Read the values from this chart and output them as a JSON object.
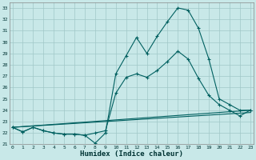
{
  "xlabel": "Humidex (Indice chaleur)",
  "background_color": "#c8e8e8",
  "grid_color": "#a0c8c8",
  "line_color": "#006060",
  "xlim": [
    0,
    23
  ],
  "ylim": [
    21,
    33.5
  ],
  "yticks": [
    21,
    22,
    23,
    24,
    25,
    26,
    27,
    28,
    29,
    30,
    31,
    32,
    33
  ],
  "xticks": [
    0,
    1,
    2,
    3,
    4,
    5,
    6,
    7,
    8,
    9,
    10,
    11,
    12,
    13,
    14,
    15,
    16,
    17,
    18,
    19,
    20,
    21,
    22,
    23
  ],
  "line1_marked": {
    "x": [
      0,
      1,
      2,
      3,
      4,
      5,
      6,
      7,
      8,
      9,
      10,
      11,
      12,
      13,
      14,
      15,
      16,
      17,
      18,
      19,
      20,
      21,
      22,
      23
    ],
    "y": [
      22.5,
      22.1,
      22.5,
      22.2,
      22.0,
      21.9,
      21.9,
      21.8,
      21.1,
      22.0,
      27.2,
      28.8,
      30.4,
      29.0,
      30.5,
      31.8,
      33.0,
      32.8,
      31.2,
      28.5,
      25.0,
      24.5,
      24.0,
      24.0
    ]
  },
  "line2_marked": {
    "x": [
      0,
      1,
      2,
      3,
      4,
      5,
      6,
      7,
      8,
      9,
      10,
      11,
      12,
      13,
      14,
      15,
      16,
      17,
      18,
      19,
      20,
      21,
      22,
      23
    ],
    "y": [
      22.5,
      22.1,
      22.5,
      22.2,
      22.0,
      21.9,
      21.9,
      21.8,
      22.0,
      22.2,
      25.5,
      26.9,
      27.2,
      26.9,
      27.5,
      28.3,
      29.2,
      28.5,
      26.8,
      25.3,
      24.5,
      24.0,
      23.5,
      24.0
    ]
  },
  "line3_plain": {
    "x": [
      0,
      23
    ],
    "y": [
      22.5,
      24.0
    ]
  },
  "line4_plain": {
    "x": [
      0,
      23
    ],
    "y": [
      22.5,
      23.8
    ]
  }
}
